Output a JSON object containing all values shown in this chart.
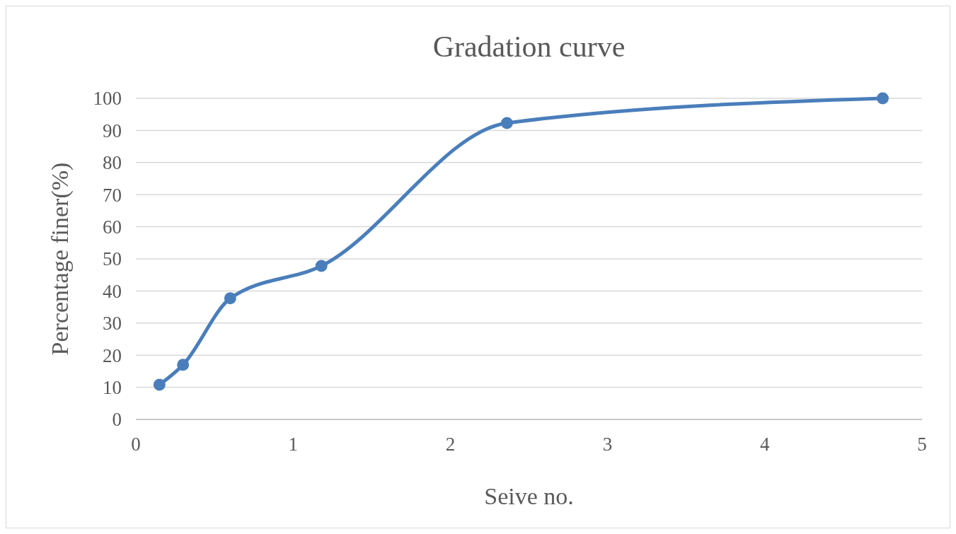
{
  "chart_data": {
    "type": "line",
    "title": "Gradation curve",
    "xlabel": "Seive no.",
    "ylabel": "Percentage finer(%)",
    "x": [
      0.15,
      0.3,
      0.6,
      1.18,
      2.36,
      4.75
    ],
    "series": [
      {
        "color": "#4a7ebb",
        "values": [
          10.8,
          17,
          37.7,
          47.8,
          92.3,
          100
        ]
      }
    ],
    "xlim": [
      0,
      5
    ],
    "xticks": [
      0,
      1,
      2,
      3,
      4,
      5
    ],
    "ylim": [
      0,
      100
    ],
    "yticks": [
      0,
      10,
      20,
      30,
      40,
      50,
      60,
      70,
      80,
      90,
      100
    ],
    "grid": "y",
    "marker": "circle",
    "line_style": "solid"
  }
}
